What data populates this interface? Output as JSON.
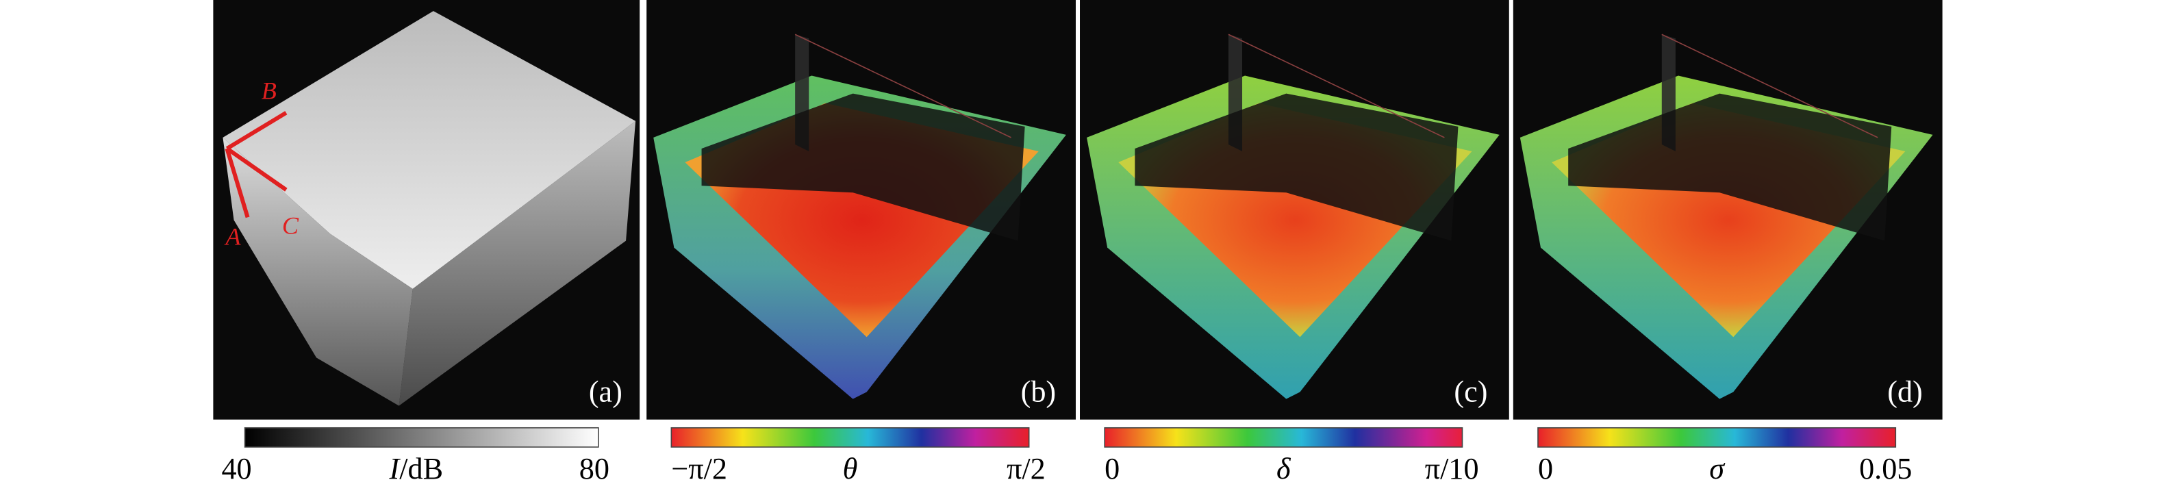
{
  "panels": [
    {
      "label": "(a)",
      "axes": [
        "A",
        "B",
        "C"
      ],
      "colorbar": {
        "min": 40,
        "symbol": "I",
        "unit": "/dB",
        "max": 80
      }
    },
    {
      "label": "(b)",
      "colorbar": {
        "min": "−π/2",
        "symbol": "θ",
        "max": "π/2"
      }
    },
    {
      "label": "(c)",
      "colorbar": {
        "min": "0",
        "symbol": "δ",
        "max": "π/10"
      }
    },
    {
      "label": "(d)",
      "colorbar": {
        "min": "0",
        "symbol": "σ",
        "max": "0.05"
      }
    }
  ]
}
